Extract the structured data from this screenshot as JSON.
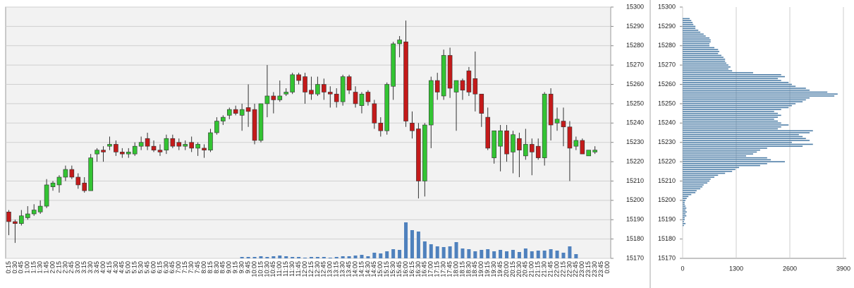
{
  "chart_data": [
    {
      "type": "candlestick",
      "categories": [
        "0:15",
        "0:30",
        "0:45",
        "1:00",
        "1:15",
        "1:30",
        "1:45",
        "2:00",
        "2:15",
        "2:30",
        "2:45",
        "3:00",
        "3:15",
        "3:30",
        "3:45",
        "4:00",
        "4:15",
        "4:30",
        "4:45",
        "5:00",
        "5:15",
        "5:30",
        "5:45",
        "6:00",
        "6:15",
        "6:30",
        "6:45",
        "7:00",
        "7:15",
        "7:30",
        "7:45",
        "8:00",
        "8:15",
        "8:30",
        "8:45",
        "9:00",
        "9:15",
        "9:30",
        "9:45",
        "10:00",
        "10:15",
        "10:30",
        "10:45",
        "11:00",
        "11:15",
        "11:30",
        "11:45",
        "12:00",
        "12:15",
        "12:30",
        "12:45",
        "13:00",
        "13:15",
        "13:30",
        "13:45",
        "14:00",
        "14:15",
        "14:30",
        "14:45",
        "15:00",
        "15:15",
        "15:30",
        "15:45",
        "16:00",
        "16:15",
        "16:30",
        "16:45",
        "17:00",
        "17:15",
        "17:30",
        "17:45",
        "18:00",
        "18:15",
        "18:30",
        "18:45",
        "19:00",
        "19:15",
        "19:30",
        "19:45",
        "20:00",
        "20:15",
        "20:30",
        "20:45",
        "21:00",
        "21:15",
        "21:30",
        "21:45",
        "22:00",
        "22:15",
        "22:30",
        "22:45",
        "23:00",
        "23:15",
        "23:30",
        "23:45",
        "0:00"
      ],
      "open": [
        15194,
        15189,
        15188,
        15191,
        15193,
        15194,
        15197,
        15207,
        15208,
        15212,
        15216,
        15212,
        15209,
        15205,
        15224,
        15226,
        15228,
        15229,
        15225,
        15224,
        15224,
        15228,
        15232,
        15228,
        15226,
        15226,
        15232,
        15230,
        15228,
        15230,
        15227,
        15227,
        15226,
        15235,
        15241,
        15244,
        15247,
        15244,
        15248,
        15247,
        15231,
        15250,
        15254,
        15252,
        15255,
        15256,
        15265,
        15264,
        15257,
        15255,
        15260,
        15256,
        15255,
        15251,
        15264,
        15256,
        15249,
        15256,
        15250,
        15240,
        15236,
        15259,
        15281,
        15282,
        15240,
        15237,
        15210,
        15239,
        15262,
        15254,
        15275,
        15256,
        15262,
        15267,
        15263,
        15255,
        15243,
        15222,
        15228,
        15236,
        15225,
        15232,
        15223,
        15229,
        15228,
        15222,
        15255,
        15240,
        15241,
        15238,
        15228,
        15231,
        15223,
        15225,
        null,
        null
      ],
      "high": [
        15195,
        15190,
        15195,
        15197,
        15198,
        15200,
        15211,
        15210,
        15213,
        15218,
        15218,
        15214,
        15212,
        15224,
        15227,
        15228,
        15233,
        15231,
        15227,
        15227,
        15230,
        15233,
        15235,
        15231,
        15229,
        15234,
        15234,
        15232,
        15231,
        15233,
        15230,
        15229,
        15237,
        15243,
        15244,
        15248,
        15249,
        15250,
        15260,
        15250,
        15250,
        15270,
        15256,
        15262,
        15258,
        15266,
        15266,
        15266,
        15264,
        15264,
        15263,
        15259,
        15258,
        15265,
        15265,
        15259,
        15256,
        15257,
        15252,
        15243,
        15261,
        15282,
        15285,
        15293,
        15246,
        15240,
        15240,
        15264,
        15266,
        15278,
        15279,
        15262,
        15263,
        15269,
        15277,
        15255,
        15248,
        15236,
        15239,
        15239,
        15236,
        15235,
        15237,
        15232,
        15232,
        15256,
        15258,
        15248,
        15248,
        15241,
        15233,
        15232,
        15226,
        15228,
        null,
        null
      ],
      "low": [
        15182,
        15178,
        15187,
        15190,
        15192,
        15193,
        15196,
        15205,
        15204,
        15210,
        15211,
        15206,
        15204,
        15205,
        15220,
        15220,
        15226,
        15223,
        15222,
        15222,
        15223,
        15226,
        15226,
        15225,
        15223,
        15224,
        15227,
        15226,
        15226,
        15225,
        15223,
        15222,
        15225,
        15234,
        15239,
        15242,
        15244,
        15236,
        15238,
        15229,
        15230,
        15243,
        15245,
        15251,
        15254,
        15255,
        15260,
        15250,
        15252,
        15254,
        15252,
        15248,
        15248,
        15249,
        15255,
        15248,
        15245,
        15249,
        15237,
        15233,
        15234,
        15252,
        15274,
        15238,
        15232,
        15201,
        15202,
        15227,
        15252,
        15252,
        15253,
        15236,
        15252,
        15254,
        15246,
        15238,
        15226,
        15219,
        15215,
        15220,
        15214,
        15212,
        15221,
        15213,
        15221,
        15218,
        15231,
        15236,
        15228,
        15210,
        15226,
        15224,
        15223,
        15224,
        null,
        null
      ],
      "close": [
        15189,
        15188,
        15192,
        15193,
        15195,
        15197,
        15208,
        15209,
        15212,
        15216,
        15212,
        15208,
        15205,
        15222,
        15226,
        15225,
        15229,
        15225,
        15224,
        15225,
        15228,
        15230,
        15228,
        15226,
        15225,
        15232,
        15228,
        15228,
        15229,
        15227,
        15229,
        15226,
        15235,
        15241,
        15243,
        15247,
        15245,
        15247,
        15246,
        15231,
        15250,
        15254,
        15252,
        15254,
        15256,
        15265,
        15262,
        15256,
        15255,
        15260,
        15256,
        15255,
        15251,
        15264,
        15257,
        15250,
        15255,
        15251,
        15240,
        15236,
        15260,
        15281,
        15283,
        15241,
        15236,
        15210,
        15239,
        15262,
        15256,
        15275,
        15258,
        15262,
        15257,
        15256,
        15255,
        15245,
        15227,
        15236,
        15236,
        15224,
        15234,
        15226,
        15229,
        15225,
        15222,
        15255,
        15239,
        15242,
        15238,
        15227,
        15231,
        15224,
        15226,
        15226,
        null,
        null
      ],
      "volume": [
        0,
        0,
        0,
        0,
        0,
        0,
        0,
        0,
        0,
        0,
        0,
        0,
        0,
        0,
        0,
        0,
        0,
        0,
        0,
        0,
        0,
        0,
        0,
        0,
        0,
        0,
        0,
        0,
        0,
        0,
        0,
        0,
        0,
        0,
        0,
        0,
        0,
        2,
        2,
        2,
        3,
        2,
        3,
        4,
        3,
        2,
        2,
        1,
        2,
        2,
        2,
        1,
        2,
        3,
        3,
        4,
        5,
        3,
        8,
        7,
        10,
        13,
        12,
        51,
        40,
        38,
        24,
        20,
        17,
        16,
        17,
        23,
        14,
        13,
        10,
        12,
        13,
        10,
        12,
        10,
        12,
        9,
        14,
        10,
        11,
        11,
        13,
        11,
        8,
        17,
        6,
        0,
        0,
        0,
        null,
        null
      ],
      "up_color": "#33c433",
      "down_color": "#c41a1a",
      "volume_color": "#4f81bd",
      "ylim": [
        15170,
        15300
      ],
      "yticks": [
        15170,
        15180,
        15190,
        15200,
        15210,
        15220,
        15230,
        15240,
        15250,
        15260,
        15270,
        15280,
        15290,
        15300
      ],
      "grid": true
    },
    {
      "type": "barh",
      "categories": [
        15294,
        15293,
        15292,
        15291,
        15290,
        15289,
        15288,
        15287,
        15286,
        15285,
        15284,
        15283,
        15282,
        15281,
        15280,
        15279,
        15278,
        15277,
        15276,
        15275,
        15274,
        15273,
        15272,
        15271,
        15270,
        15269,
        15268,
        15267,
        15266,
        15265,
        15264,
        15263,
        15262,
        15261,
        15260,
        15259,
        15258,
        15257,
        15256,
        15255,
        15254,
        15253,
        15252,
        15251,
        15250,
        15249,
        15248,
        15247,
        15246,
        15245,
        15244,
        15243,
        15242,
        15241,
        15240,
        15239,
        15238,
        15237,
        15236,
        15235,
        15234,
        15233,
        15232,
        15231,
        15230,
        15229,
        15228,
        15227,
        15226,
        15225,
        15224,
        15223,
        15222,
        15221,
        15220,
        15219,
        15218,
        15217,
        15216,
        15215,
        15214,
        15213,
        15212,
        15211,
        15210,
        15209,
        15208,
        15207,
        15206,
        15205,
        15204,
        15203,
        15202,
        15201,
        15200,
        15199,
        15198,
        15197,
        15196,
        15195,
        15194,
        15193,
        15192,
        15191,
        15190,
        15189,
        15188,
        15187
      ],
      "values": [
        170,
        210,
        240,
        260,
        310,
        310,
        380,
        430,
        510,
        560,
        650,
        680,
        680,
        650,
        650,
        770,
        860,
        890,
        860,
        940,
        990,
        1030,
        1030,
        1060,
        1110,
        1160,
        1110,
        1200,
        1710,
        2390,
        2480,
        2310,
        2390,
        2570,
        2650,
        2740,
        2990,
        3080,
        3510,
        3760,
        3680,
        3080,
        2990,
        2910,
        2740,
        2650,
        2570,
        2390,
        2220,
        2310,
        2390,
        2310,
        2220,
        2310,
        2390,
        2570,
        2390,
        2310,
        3160,
        3080,
        2820,
        2910,
        2990,
        3080,
        2650,
        3160,
        2910,
        2050,
        1880,
        1800,
        1710,
        1540,
        2050,
        2140,
        2480,
        2050,
        1880,
        1370,
        1280,
        1200,
        1030,
        860,
        770,
        680,
        650,
        600,
        510,
        480,
        430,
        340,
        310,
        210,
        140,
        100,
        70,
        50,
        50,
        70,
        90,
        70,
        100,
        70,
        90,
        50,
        50,
        30,
        70,
        30
      ],
      "color": "#4f7fa8",
      "ylim": [
        15170,
        15300
      ],
      "yticks": [
        15170,
        15180,
        15190,
        15200,
        15210,
        15220,
        15230,
        15240,
        15250,
        15260,
        15270,
        15280,
        15290,
        15300
      ],
      "xlim": [
        0,
        3900
      ],
      "xticks": [
        0,
        1300,
        2600,
        3900
      ],
      "grid": true
    }
  ]
}
